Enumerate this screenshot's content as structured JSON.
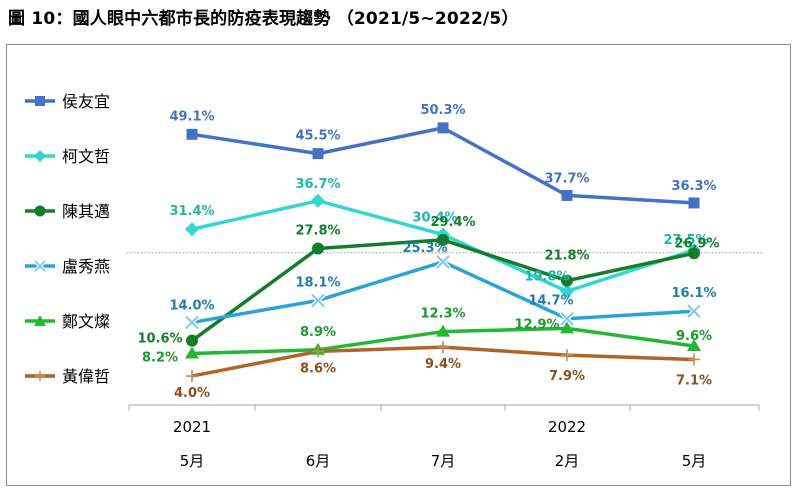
{
  "title": "圖 10：國人眼中六都市長的防疫表現趨勢 （2021/5~2022/5）",
  "chart_data": {
    "type": "line",
    "categories": [
      "5月",
      "6月",
      "7月",
      "2月",
      "5月"
    ],
    "years": [
      {
        "label": "2021",
        "index": 0
      },
      {
        "label": "2022",
        "index": 3
      }
    ],
    "ylim": [
      0,
      55
    ],
    "reference_line": 27,
    "legend_position": "left",
    "series": [
      {
        "name": "侯友宜",
        "values": [
          49.1,
          45.5,
          50.3,
          37.7,
          36.3
        ],
        "labels": [
          "49.1%",
          "45.5%",
          "50.3%",
          "37.7%",
          "36.3%"
        ],
        "color": "#4472C4",
        "label_color": "#4472C4",
        "marker": "square"
      },
      {
        "name": "柯文哲",
        "values": [
          31.4,
          36.7,
          30.4,
          19.8,
          27.5
        ],
        "labels": [
          "31.4%",
          "36.7%",
          "30.4%",
          "19.8%",
          "27.5%"
        ],
        "color": "#33D6D0",
        "label_color": "#1FB5AD",
        "marker": "diamond"
      },
      {
        "name": "陳其邁",
        "values": [
          10.6,
          27.8,
          29.4,
          21.8,
          26.9
        ],
        "labels": [
          "10.6%",
          "27.8%",
          "29.4%",
          "21.8%",
          "26.9%"
        ],
        "color": "#137D2A",
        "label_color": "#137D2A",
        "marker": "circle"
      },
      {
        "name": "盧秀燕",
        "values": [
          14.0,
          18.1,
          25.3,
          14.7,
          16.1
        ],
        "labels": [
          "14.0%",
          "18.1%",
          "25.3%",
          "14.7%",
          "16.1%"
        ],
        "color": "#2AA4D5",
        "label_color": "#1F7EAA",
        "marker": "x"
      },
      {
        "name": "鄭文燦",
        "values": [
          8.2,
          8.9,
          12.3,
          12.9,
          9.6
        ],
        "labels": [
          "8.2%",
          "8.9%",
          "12.3%",
          "12.9%",
          "9.6%"
        ],
        "color": "#22B833",
        "label_color": "#1A9A2A",
        "marker": "triangle"
      },
      {
        "name": "黃偉哲",
        "values": [
          4.0,
          8.6,
          9.4,
          7.9,
          7.1
        ],
        "labels": [
          "4.0%",
          "8.6%",
          "9.4%",
          "7.9%",
          "7.1%"
        ],
        "color": "#B0642A",
        "label_color": "#8E4E1E",
        "marker": "plus"
      }
    ]
  }
}
